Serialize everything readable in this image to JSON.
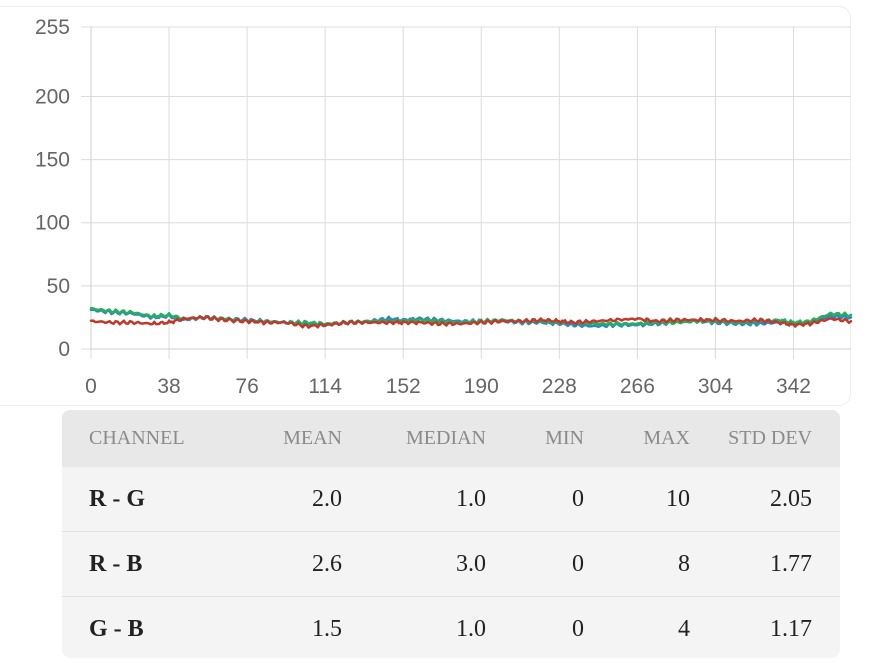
{
  "chart_data": {
    "type": "line",
    "title": "",
    "xlabel": "",
    "ylabel": "",
    "xlim": [
      0,
      370
    ],
    "ylim": [
      0,
      255
    ],
    "x_ticks": [
      "0",
      "38",
      "76",
      "114",
      "152",
      "190",
      "228",
      "266",
      "304",
      "342"
    ],
    "y_ticks": [
      "0",
      "50",
      "100",
      "150",
      "200",
      "255"
    ],
    "grid": true,
    "legend": "none",
    "series": [
      {
        "color": "#2e86c1",
        "x": [
          0,
          10,
          20,
          30,
          38,
          45,
          55,
          65,
          76,
          85,
          95,
          105,
          114,
          125,
          135,
          145,
          152,
          160,
          170,
          180,
          190,
          200,
          210,
          220,
          228,
          235,
          245,
          255,
          266,
          275,
          285,
          295,
          304,
          315,
          325,
          335,
          342,
          350,
          360,
          370
        ],
        "y": [
          31,
          29,
          28,
          25,
          26,
          23,
          25,
          24,
          23,
          22,
          21,
          20,
          19,
          21,
          22,
          24,
          23,
          24,
          23,
          22,
          22,
          22,
          21,
          21,
          20,
          19,
          18,
          19,
          19,
          20,
          21,
          22,
          21,
          20,
          20,
          21,
          20,
          21,
          26,
          25
        ]
      },
      {
        "color": "#27ae60",
        "x": [
          0,
          10,
          20,
          30,
          38,
          45,
          55,
          65,
          76,
          85,
          95,
          105,
          114,
          125,
          135,
          145,
          152,
          160,
          170,
          180,
          190,
          200,
          210,
          220,
          228,
          235,
          245,
          255,
          266,
          275,
          285,
          295,
          304,
          315,
          325,
          335,
          342,
          350,
          360,
          370
        ],
        "y": [
          32,
          30,
          29,
          26,
          27,
          24,
          25,
          24,
          22,
          22,
          21,
          21,
          20,
          21,
          22,
          22,
          22,
          23,
          22,
          21,
          22,
          23,
          22,
          22,
          21,
          21,
          20,
          20,
          20,
          21,
          21,
          22,
          22,
          21,
          22,
          23,
          21,
          22,
          28,
          27
        ]
      },
      {
        "color": "#c0392b",
        "x": [
          0,
          10,
          20,
          30,
          38,
          45,
          55,
          65,
          76,
          85,
          95,
          105,
          114,
          125,
          135,
          145,
          152,
          160,
          170,
          180,
          190,
          200,
          210,
          220,
          228,
          235,
          245,
          255,
          266,
          275,
          285,
          295,
          304,
          315,
          325,
          335,
          342,
          350,
          360,
          370
        ],
        "y": [
          22,
          21,
          21,
          20,
          21,
          24,
          25,
          23,
          22,
          21,
          21,
          18,
          19,
          21,
          21,
          21,
          21,
          21,
          20,
          20,
          21,
          22,
          22,
          23,
          22,
          21,
          22,
          23,
          24,
          22,
          23,
          23,
          23,
          22,
          23,
          21,
          19,
          20,
          24,
          22
        ]
      }
    ]
  },
  "stats_table": {
    "headers": {
      "channel": "CHANNEL",
      "mean": "MEAN",
      "median": "MEDIAN",
      "min": "MIN",
      "max": "MAX",
      "std": "STD DEV"
    },
    "rows": [
      {
        "channel": "R - G",
        "mean": "2.0",
        "median": "1.0",
        "min": "0",
        "max": "10",
        "std": "2.05"
      },
      {
        "channel": "R - B",
        "mean": "2.6",
        "median": "3.0",
        "min": "0",
        "max": "8",
        "std": "1.77"
      },
      {
        "channel": "G - B",
        "mean": "1.5",
        "median": "1.0",
        "min": "0",
        "max": "4",
        "std": "1.17"
      }
    ]
  }
}
